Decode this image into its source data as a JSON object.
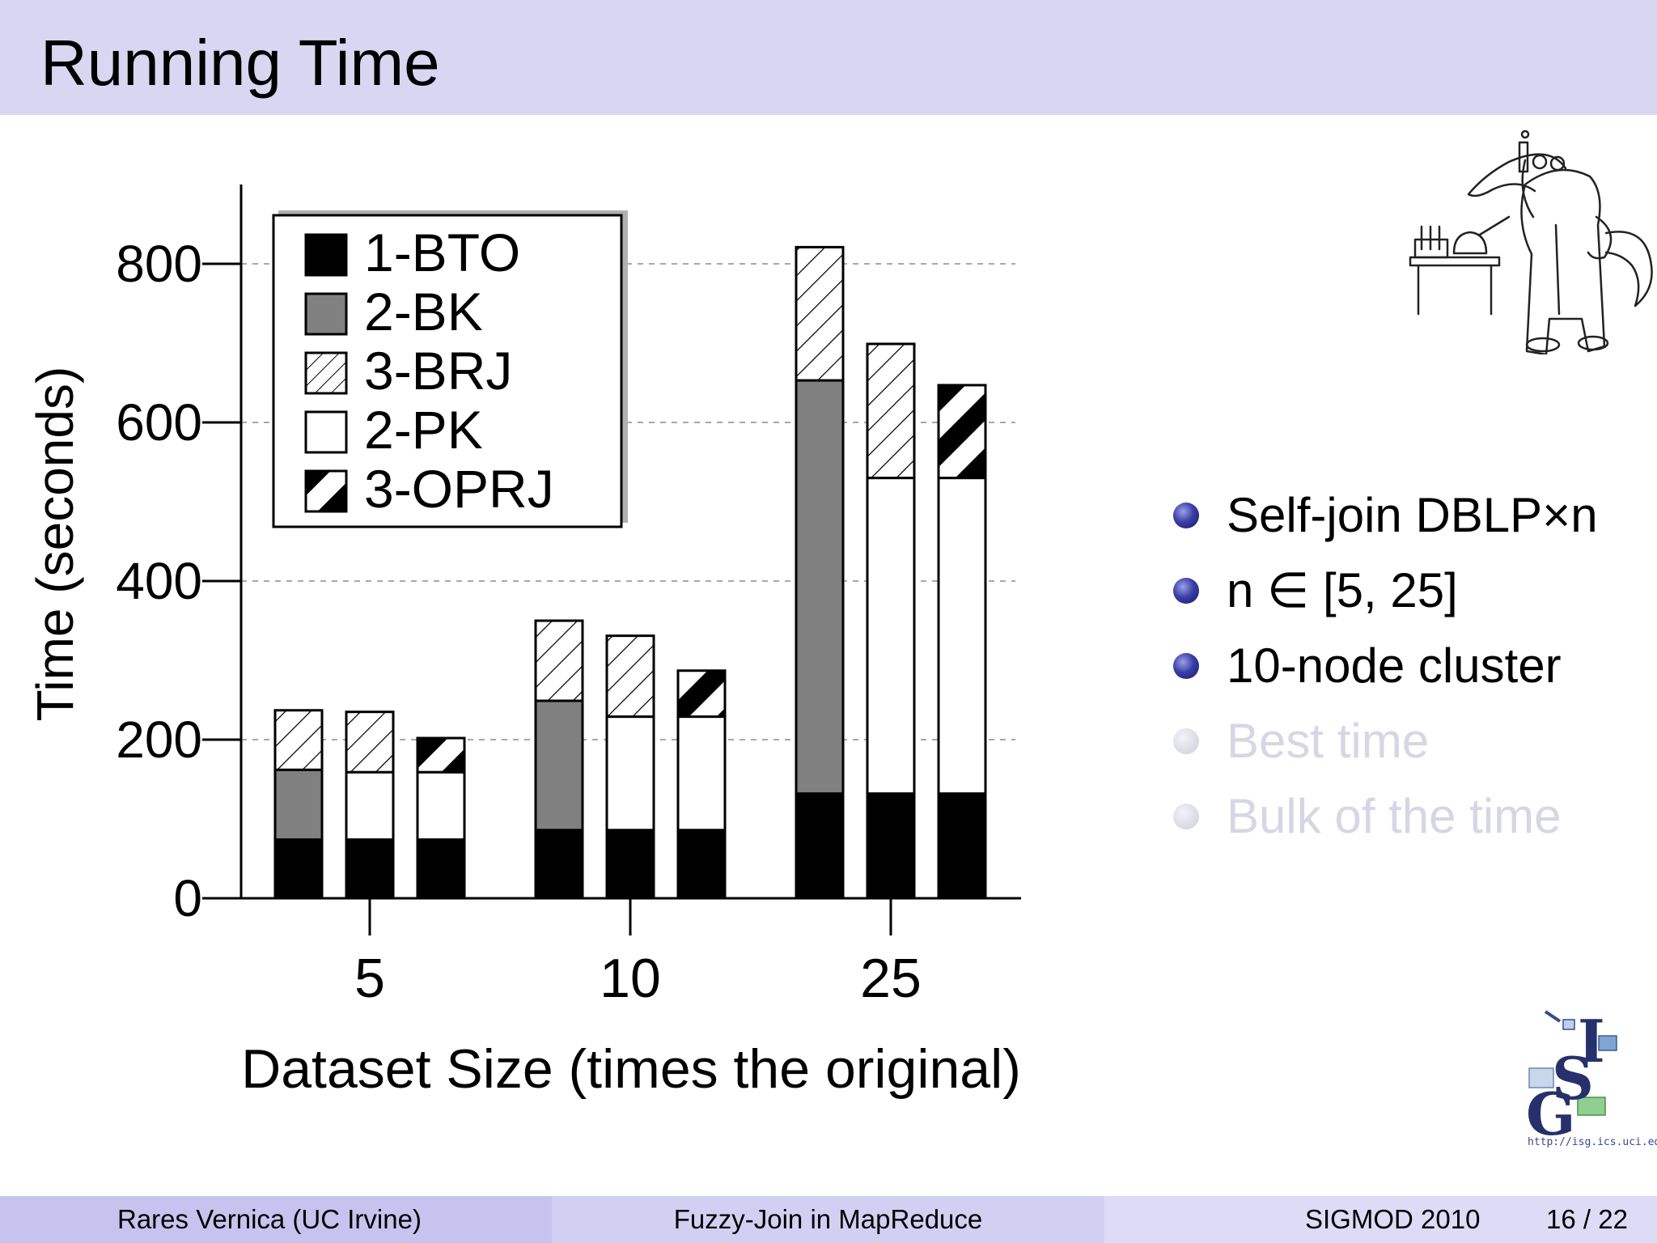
{
  "slide": {
    "title": "Running Time"
  },
  "bullets": [
    {
      "text": "Self-join DBLP×n",
      "dim": false
    },
    {
      "text": "n ∈ [5, 25]",
      "dim": false
    },
    {
      "text": "10-node cluster",
      "dim": false
    },
    {
      "text": "Best time",
      "dim": true
    },
    {
      "text": "Bulk of the time",
      "dim": true
    }
  ],
  "logo": {
    "url": "http://isg.ics.uci.edu",
    "lettering": "ISG"
  },
  "footer": {
    "author": "Rares Vernica  (UC Irvine)",
    "talk_title": "Fuzzy-Join in MapReduce",
    "conference": "SIGMOD 2010",
    "page": "16 / 22"
  },
  "colors": {
    "header_bg": "#d8d6f1",
    "bullet_blue": "#2b2f8f",
    "bk_gray": "#808080"
  },
  "chart_data": {
    "type": "bar",
    "stacked": true,
    "xlabel": "Dataset Size (times the original)",
    "ylabel": "Time (seconds)",
    "ylim": [
      0,
      900
    ],
    "yticks": [
      0,
      200,
      400,
      600,
      800
    ],
    "grid": "dashed horizontal at 200,400,600,800",
    "legend_position": "top-left",
    "legend": [
      {
        "name": "1-BTO",
        "pattern": "solid-black"
      },
      {
        "name": "2-BK",
        "pattern": "solid-gray"
      },
      {
        "name": "3-BRJ",
        "pattern": "hatch"
      },
      {
        "name": "2-PK",
        "pattern": "white"
      },
      {
        "name": "3-OPRJ",
        "pattern": "black-white-diagonal"
      }
    ],
    "groups": [
      {
        "label": "5",
        "bars": [
          {
            "segments": [
              {
                "stage": "1-BTO",
                "value": 74
              },
              {
                "stage": "2-BK",
                "value": 88
              },
              {
                "stage": "3-BRJ",
                "value": 75
              }
            ]
          },
          {
            "segments": [
              {
                "stage": "1-BTO",
                "value": 74
              },
              {
                "stage": "2-PK",
                "value": 85
              },
              {
                "stage": "3-BRJ",
                "value": 76
              }
            ]
          },
          {
            "segments": [
              {
                "stage": "1-BTO",
                "value": 74
              },
              {
                "stage": "2-PK",
                "value": 85
              },
              {
                "stage": "3-OPRJ",
                "value": 43
              }
            ]
          }
        ]
      },
      {
        "label": "10",
        "bars": [
          {
            "segments": [
              {
                "stage": "1-BTO",
                "value": 86
              },
              {
                "stage": "2-BK",
                "value": 163
              },
              {
                "stage": "3-BRJ",
                "value": 101
              }
            ]
          },
          {
            "segments": [
              {
                "stage": "1-BTO",
                "value": 86
              },
              {
                "stage": "2-PK",
                "value": 143
              },
              {
                "stage": "3-BRJ",
                "value": 102
              }
            ]
          },
          {
            "segments": [
              {
                "stage": "1-BTO",
                "value": 86
              },
              {
                "stage": "2-PK",
                "value": 143
              },
              {
                "stage": "3-OPRJ",
                "value": 58
              }
            ]
          }
        ]
      },
      {
        "label": "25",
        "bars": [
          {
            "segments": [
              {
                "stage": "1-BTO",
                "value": 132
              },
              {
                "stage": "2-BK",
                "value": 521
              },
              {
                "stage": "3-BRJ",
                "value": 168
              }
            ]
          },
          {
            "segments": [
              {
                "stage": "1-BTO",
                "value": 132
              },
              {
                "stage": "2-PK",
                "value": 398
              },
              {
                "stage": "3-BRJ",
                "value": 169
              }
            ]
          },
          {
            "segments": [
              {
                "stage": "1-BTO",
                "value": 132
              },
              {
                "stage": "2-PK",
                "value": 398
              },
              {
                "stage": "3-OPRJ",
                "value": 117
              }
            ]
          }
        ]
      }
    ]
  }
}
